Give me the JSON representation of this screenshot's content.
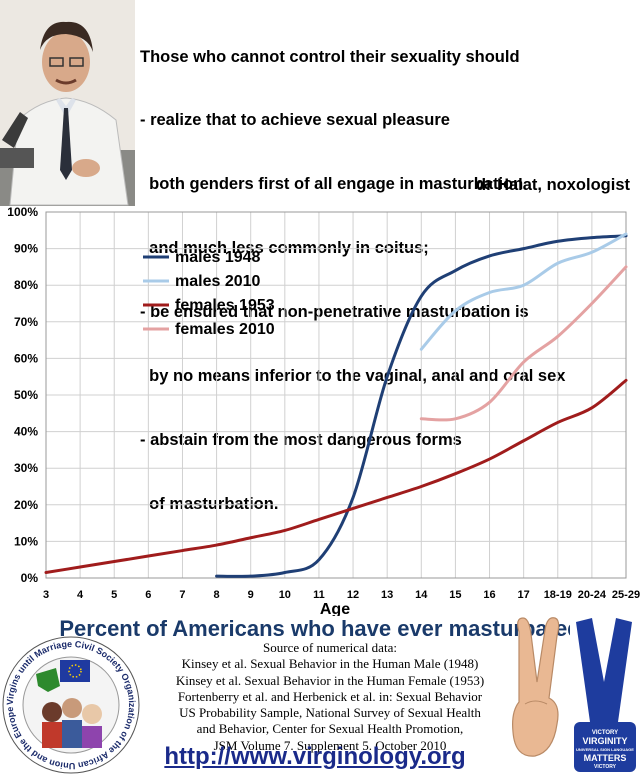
{
  "quote": {
    "lines": [
      "Those who cannot control their sexuality should",
      "- realize that to achieve sexual pleasure",
      "  both genders first of all engage in masturbation",
      "  and much less commonly in coitus;",
      "- be ensured that non-penetrative masturbation is",
      "  by no means inferior to the vaginal, anal and oral sex",
      "- abstain from the most dangerous forms",
      "  of masturbation."
    ],
    "author": "dr Halat, noxologist"
  },
  "chart_data": {
    "type": "line",
    "title": "Percent of Americans who have ever masturbated",
    "xlabel": "Age",
    "ylabel": "",
    "categories": [
      "3",
      "4",
      "5",
      "6",
      "7",
      "8",
      "9",
      "10",
      "11",
      "12",
      "13",
      "14",
      "15",
      "16",
      "17",
      "18-19",
      "20-24",
      "25-29"
    ],
    "ylim": [
      0,
      100
    ],
    "yticks": [
      "0%",
      "10%",
      "20%",
      "30%",
      "40%",
      "50%",
      "60%",
      "70%",
      "80%",
      "90%",
      "100%"
    ],
    "grid": true,
    "legend_position": "top-left",
    "series": [
      {
        "name": "males 1948",
        "color": "#1f3f75",
        "values": [
          null,
          null,
          null,
          null,
          null,
          0.5,
          0.5,
          1.5,
          5,
          22,
          55,
          77,
          84,
          88,
          90,
          92,
          93,
          93.5
        ]
      },
      {
        "name": "males 2010",
        "color": "#a9cbe8",
        "values": [
          null,
          null,
          null,
          null,
          null,
          null,
          null,
          null,
          null,
          null,
          null,
          62.5,
          73,
          78,
          80,
          86,
          89,
          94
        ]
      },
      {
        "name": "females 1953",
        "color": "#a01c1c",
        "values": [
          1.5,
          3,
          4.5,
          6,
          7.5,
          9,
          11,
          13,
          16,
          19,
          22,
          25,
          28.5,
          32.5,
          37.5,
          42.5,
          46.5,
          54
        ]
      },
      {
        "name": "females 2010",
        "color": "#e4a2a2",
        "values": [
          null,
          null,
          null,
          null,
          null,
          null,
          null,
          null,
          null,
          null,
          null,
          43.5,
          43.5,
          48,
          59,
          66,
          75,
          85
        ]
      }
    ]
  },
  "sources": {
    "lines": [
      "Source of numerical data:",
      "Kinsey et al.  Sexual Behavior in the Human Male (1948)",
      "Kinsey et al. Sexual Behavior in the Human Female (1953)",
      "Fortenberry et al. and Herbenick et al. in: Sexual Behavior",
      "US Probability Sample, National Survey of Sexual Health",
      "and Behavior, Center for Sexual Health Promotion,",
      "JSM Volume 7. Supplement 5. October 2010"
    ]
  },
  "url": "http://www.virginology.org",
  "logo": {
    "ring_text": "Virgins until Marriage Civil Society Organization of the African Union and the European Union"
  },
  "badge": {
    "words": [
      "VICTORY",
      "VIRGINITY",
      "UNIVERSAL SIGN LANGUAGE",
      "MATTERS",
      "VICTORY"
    ]
  },
  "colors": {
    "title": "#1a3a6a",
    "url": "#1a2a8a",
    "grid": "#d0d0d0",
    "badge": "#1e3c9e"
  }
}
